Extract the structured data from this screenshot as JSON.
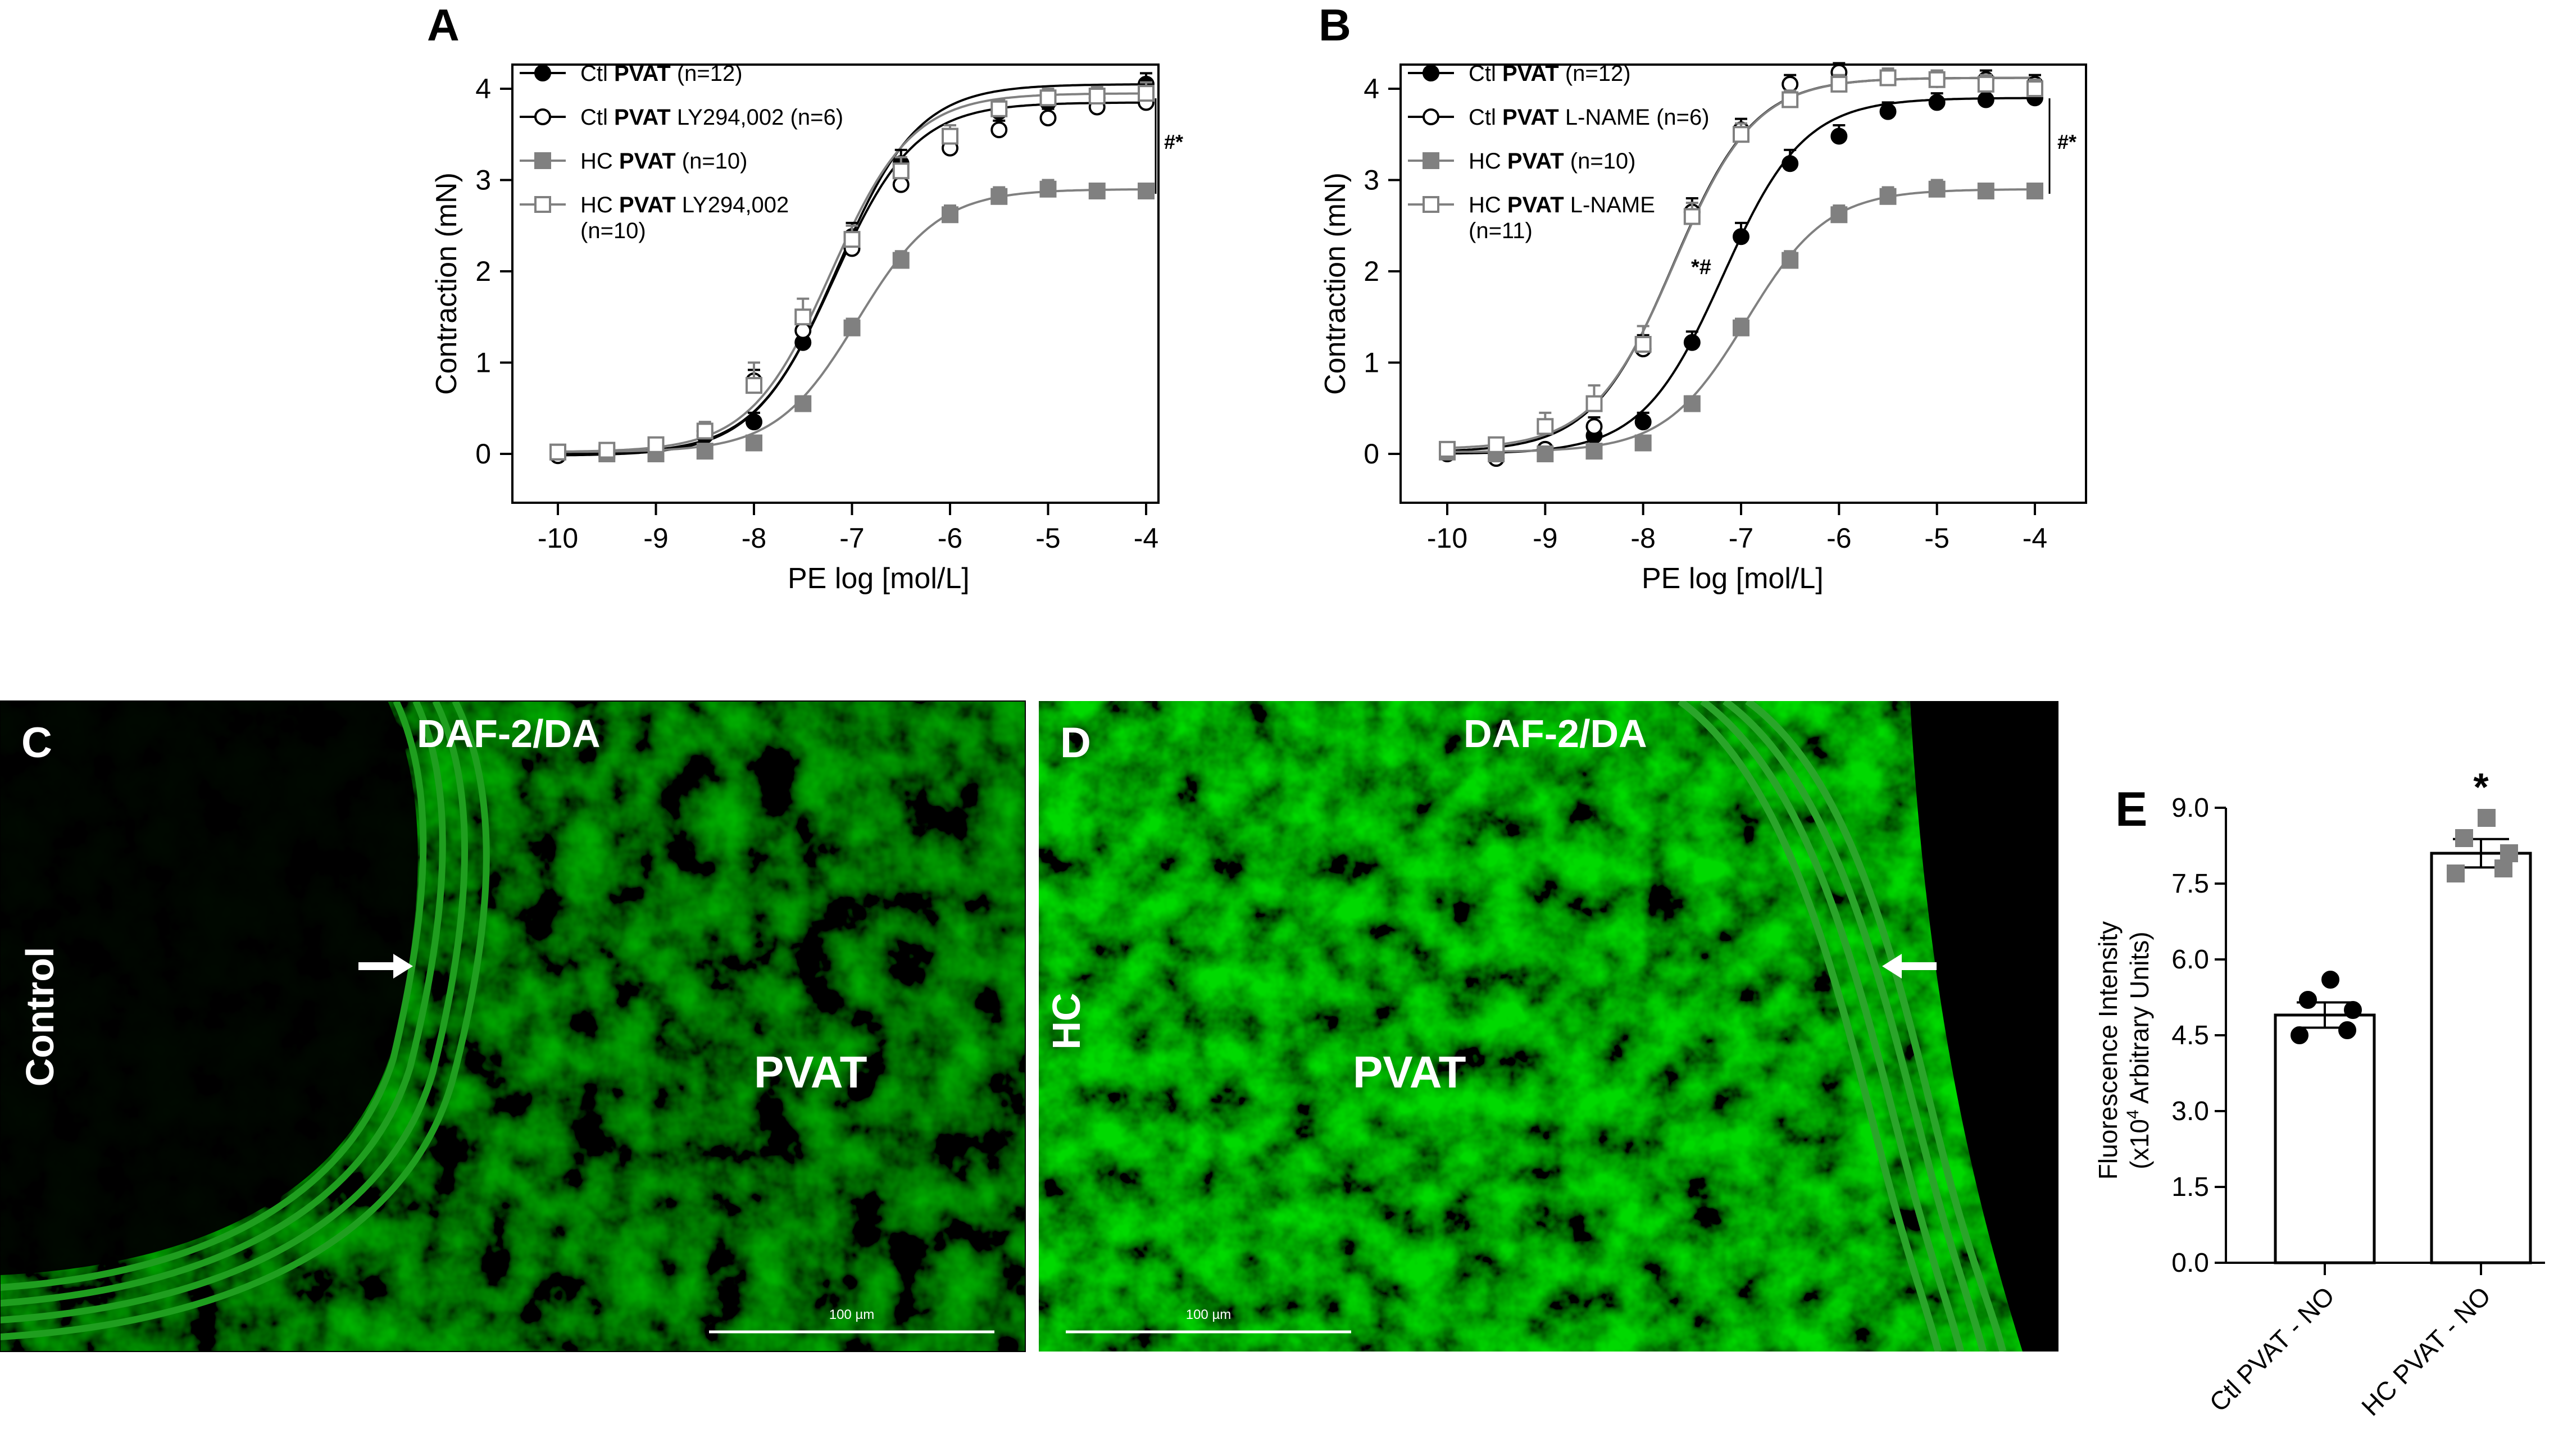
{
  "panel_letters": {
    "a": "A",
    "b": "B",
    "c": "C",
    "d": "D",
    "e": "E"
  },
  "chart_data": [
    {
      "type": "line",
      "panel": "A",
      "xlabel": "PE log [mol/L]",
      "ylabel": "Contraction (mN)",
      "xlim": [
        -10,
        -4
      ],
      "ylim": [
        0,
        4
      ],
      "xticks": [
        "-10",
        "-9",
        "-8",
        "-7",
        "-6",
        "-5",
        "-4"
      ],
      "yticks": [
        "0",
        "1",
        "2",
        "3",
        "4"
      ],
      "significance": "#*",
      "legend_position": "top-left",
      "x": [
        -10,
        -9.5,
        -9,
        -8.5,
        -8,
        -7.5,
        -7,
        -6.5,
        -6,
        -5.5,
        -5,
        -4.5,
        -4
      ],
      "series": [
        {
          "name": "Ctl PVAT (n=12)",
          "name_prefix": "Ctl",
          "name_bold": "PVAT",
          "name_suffix": "(n=12)",
          "marker": "filled-circle",
          "color": "#000000",
          "values": [
            0.0,
            0.0,
            0.05,
            0.2,
            0.35,
            1.22,
            2.38,
            3.18,
            3.48,
            3.75,
            3.85,
            3.9,
            4.05
          ],
          "errors": [
            0.05,
            0.05,
            0.05,
            0.08,
            0.1,
            0.1,
            0.15,
            0.15,
            0.12,
            0.1,
            0.1,
            0.1,
            0.12
          ]
        },
        {
          "name": "Ctl PVAT LY294,002 (n=6)",
          "name_prefix": "Ctl",
          "name_bold": "PVAT",
          "name_suffix": "LY294,002 (n=6)",
          "marker": "open-circle",
          "color": "#000000",
          "values": [
            -0.02,
            0.0,
            0.05,
            0.25,
            0.8,
            1.35,
            2.25,
            2.95,
            3.35,
            3.55,
            3.68,
            3.8,
            3.85
          ],
          "errors": [
            0.05,
            0.05,
            0.05,
            0.08,
            0.12,
            0.12,
            0.12,
            0.12,
            0.1,
            0.1,
            0.1,
            0.1,
            0.1
          ]
        },
        {
          "name": "HC PVAT (n=10)",
          "name_prefix": "HC",
          "name_bold": "PVAT",
          "name_suffix": "(n=10)",
          "marker": "filled-square",
          "color": "#808080",
          "values": [
            0.02,
            0.0,
            0.0,
            0.03,
            0.12,
            0.55,
            1.38,
            2.12,
            2.62,
            2.82,
            2.9,
            2.88,
            2.88
          ],
          "errors": [
            0.05,
            0.05,
            0.05,
            0.05,
            0.06,
            0.08,
            0.1,
            0.1,
            0.1,
            0.1,
            0.1,
            0.08,
            0.08
          ]
        },
        {
          "name": "HC PVAT LY294,002 (n=10)",
          "name_prefix": "HC",
          "name_bold": "PVAT",
          "name_suffix": "LY294,002",
          "name_line2": "(n=10)",
          "marker": "open-square",
          "color": "#808080",
          "values": [
            0.02,
            0.04,
            0.1,
            0.25,
            0.75,
            1.5,
            2.35,
            3.1,
            3.48,
            3.78,
            3.9,
            3.92,
            3.95
          ],
          "errors": [
            0.05,
            0.05,
            0.05,
            0.1,
            0.25,
            0.2,
            0.15,
            0.15,
            0.12,
            0.1,
            0.1,
            0.1,
            0.12
          ]
        }
      ]
    },
    {
      "type": "line",
      "panel": "B",
      "xlabel": "PE log [mol/L]",
      "ylabel": "Contraction (mN)",
      "xlim": [
        -10,
        -4
      ],
      "ylim": [
        0,
        4
      ],
      "xticks": [
        "-10",
        "-9",
        "-8",
        "-7",
        "-6",
        "-5",
        "-4"
      ],
      "yticks": [
        "0",
        "1",
        "2",
        "3",
        "4"
      ],
      "significance": "#*",
      "annotation": "*#",
      "legend_position": "top-left",
      "x": [
        -10,
        -9.5,
        -9,
        -8.5,
        -8,
        -7.5,
        -7,
        -6.5,
        -6,
        -5.5,
        -5,
        -4.5,
        -4
      ],
      "series": [
        {
          "name": "Ctl PVAT (n=12)",
          "name_prefix": "Ctl",
          "name_bold": "PVAT",
          "name_suffix": "(n=12)",
          "marker": "filled-circle",
          "color": "#000000",
          "values": [
            0.0,
            0.0,
            0.05,
            0.2,
            0.35,
            1.22,
            2.38,
            3.18,
            3.48,
            3.75,
            3.85,
            3.88,
            3.9
          ],
          "errors": [
            0.05,
            0.05,
            0.05,
            0.08,
            0.1,
            0.12,
            0.15,
            0.15,
            0.12,
            0.1,
            0.1,
            0.1,
            0.1
          ]
        },
        {
          "name": "Ctl PVAT L-NAME (n=6)",
          "name_prefix": "Ctl",
          "name_bold": "PVAT",
          "name_suffix": "L-NAME (n=6)",
          "marker": "open-circle",
          "color": "#000000",
          "values": [
            0.02,
            -0.05,
            0.05,
            0.3,
            1.15,
            2.65,
            3.55,
            4.05,
            4.18,
            4.12,
            4.1,
            4.1,
            4.05
          ],
          "errors": [
            0.05,
            0.05,
            0.05,
            0.1,
            0.15,
            0.15,
            0.12,
            0.1,
            0.1,
            0.1,
            0.1,
            0.1,
            0.1
          ]
        },
        {
          "name": "HC PVAT (n=10)",
          "name_prefix": "HC",
          "name_bold": "PVAT",
          "name_suffix": "(n=10)",
          "marker": "filled-square",
          "color": "#808080",
          "values": [
            0.02,
            0.0,
            0.0,
            0.03,
            0.12,
            0.55,
            1.38,
            2.12,
            2.62,
            2.82,
            2.9,
            2.88,
            2.88
          ],
          "errors": [
            0.05,
            0.05,
            0.05,
            0.05,
            0.06,
            0.08,
            0.1,
            0.1,
            0.1,
            0.1,
            0.1,
            0.08,
            0.08
          ]
        },
        {
          "name": "HC PVAT L-NAME (n=11)",
          "name_prefix": "HC",
          "name_bold": "PVAT",
          "name_suffix": "L-NAME",
          "name_line2": "(n=11)",
          "marker": "open-square",
          "color": "#808080",
          "values": [
            0.05,
            0.1,
            0.3,
            0.55,
            1.2,
            2.6,
            3.5,
            3.88,
            4.05,
            4.12,
            4.1,
            4.05,
            4.0
          ],
          "errors": [
            0.05,
            0.05,
            0.15,
            0.2,
            0.2,
            0.15,
            0.12,
            0.1,
            0.1,
            0.1,
            0.1,
            0.1,
            0.1
          ]
        }
      ]
    },
    {
      "type": "bar",
      "panel": "E",
      "categories": [
        "Ctl PVAT - NO",
        "HC PVAT - NO"
      ],
      "values": [
        4.9,
        8.1
      ],
      "errors": [
        0.25,
        0.28
      ],
      "ylim": [
        0,
        9
      ],
      "yticks": [
        "0.0",
        "1.5",
        "3.0",
        "4.5",
        "6.0",
        "7.5",
        "9.0"
      ],
      "ylabel_line1": "Fluorescence Intensity",
      "ylabel_line2_prefix": "(x10",
      "ylabel_line2_sup": "4",
      "ylabel_line2_suffix": " Arbitrary Units)",
      "significance": "*",
      "points": [
        {
          "marker": "filled-circle",
          "color": "#000000",
          "values": [
            5.6,
            5.2,
            5.0,
            4.5,
            4.6
          ]
        },
        {
          "marker": "filled-square",
          "color": "#808080",
          "values": [
            8.8,
            8.4,
            8.1,
            7.7,
            7.8
          ]
        }
      ]
    }
  ],
  "micrographs": {
    "c": {
      "label": "DAF-2/DA",
      "group": "Control",
      "region": "PVAT",
      "scale": "100 µm"
    },
    "d": {
      "label": "DAF-2/DA",
      "group": "HC",
      "region": "PVAT",
      "scale": "100 µm"
    }
  }
}
